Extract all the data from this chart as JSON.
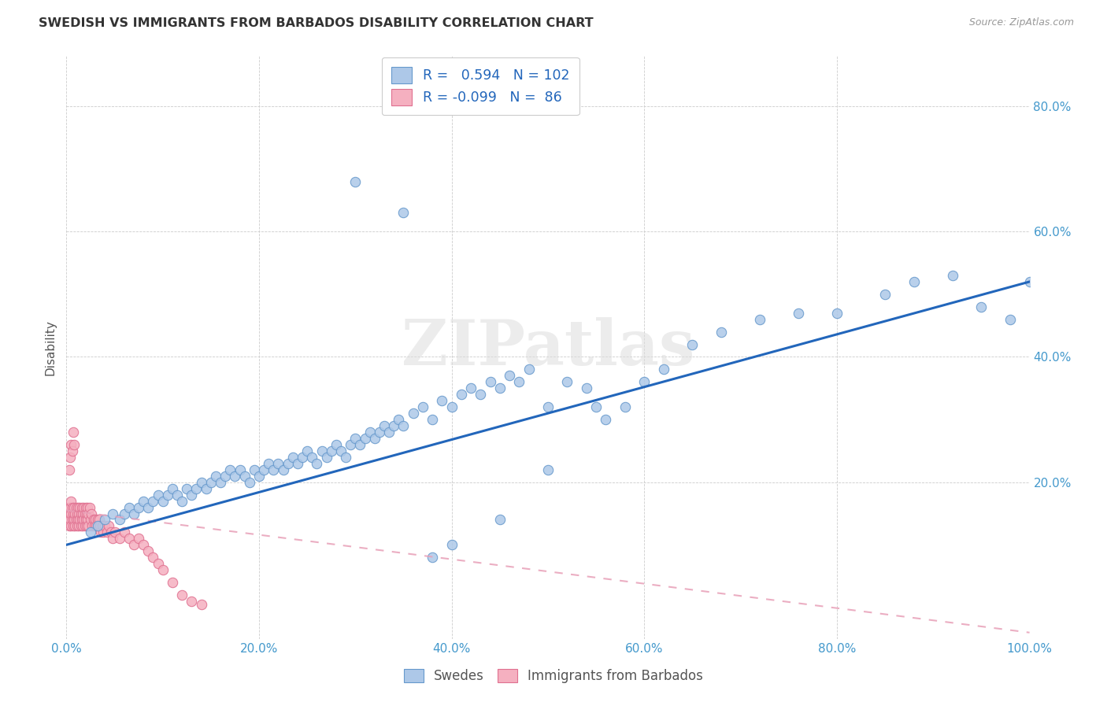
{
  "title": "SWEDISH VS IMMIGRANTS FROM BARBADOS DISABILITY CORRELATION CHART",
  "source": "Source: ZipAtlas.com",
  "ylabel": "Disability",
  "xlim": [
    0.0,
    1.0
  ],
  "ylim": [
    -0.05,
    0.88
  ],
  "x_tick_labels": [
    "0.0%",
    "20.0%",
    "40.0%",
    "60.0%",
    "80.0%",
    "100.0%"
  ],
  "x_tick_vals": [
    0.0,
    0.2,
    0.4,
    0.6,
    0.8,
    1.0
  ],
  "y_tick_labels": [
    "20.0%",
    "40.0%",
    "60.0%",
    "80.0%"
  ],
  "y_tick_vals": [
    0.2,
    0.4,
    0.6,
    0.8
  ],
  "swedes_color": "#adc8e8",
  "swedes_edge_color": "#6699cc",
  "barbados_color": "#f5b0c0",
  "barbados_edge_color": "#e07090",
  "line_blue_color": "#2266bb",
  "line_pink_color": "#e8a0b8",
  "R_swedes": 0.594,
  "N_swedes": 102,
  "R_barbados": -0.099,
  "N_barbados": 86,
  "legend_label_swedes": "Swedes",
  "legend_label_barbados": "Immigrants from Barbados",
  "watermark": "ZIPatlas",
  "swedes_x": [
    0.025,
    0.032,
    0.04,
    0.048,
    0.055,
    0.06,
    0.065,
    0.07,
    0.075,
    0.08,
    0.085,
    0.09,
    0.095,
    0.1,
    0.105,
    0.11,
    0.115,
    0.12,
    0.125,
    0.13,
    0.135,
    0.14,
    0.145,
    0.15,
    0.155,
    0.16,
    0.165,
    0.17,
    0.175,
    0.18,
    0.185,
    0.19,
    0.195,
    0.2,
    0.205,
    0.21,
    0.215,
    0.22,
    0.225,
    0.23,
    0.235,
    0.24,
    0.245,
    0.25,
    0.255,
    0.26,
    0.265,
    0.27,
    0.275,
    0.28,
    0.285,
    0.29,
    0.295,
    0.3,
    0.305,
    0.31,
    0.315,
    0.32,
    0.325,
    0.33,
    0.335,
    0.34,
    0.345,
    0.35,
    0.36,
    0.37,
    0.38,
    0.39,
    0.4,
    0.41,
    0.42,
    0.43,
    0.44,
    0.45,
    0.46,
    0.47,
    0.48,
    0.5,
    0.52,
    0.54,
    0.56,
    0.58,
    0.6,
    0.62,
    0.65,
    0.68,
    0.72,
    0.76,
    0.8,
    0.85,
    0.88,
    0.92,
    0.95,
    0.98,
    1.0,
    0.55,
    0.5,
    0.45,
    0.4,
    0.38,
    0.35,
    0.3
  ],
  "swedes_y": [
    0.12,
    0.13,
    0.14,
    0.15,
    0.14,
    0.15,
    0.16,
    0.15,
    0.16,
    0.17,
    0.16,
    0.17,
    0.18,
    0.17,
    0.18,
    0.19,
    0.18,
    0.17,
    0.19,
    0.18,
    0.19,
    0.2,
    0.19,
    0.2,
    0.21,
    0.2,
    0.21,
    0.22,
    0.21,
    0.22,
    0.21,
    0.2,
    0.22,
    0.21,
    0.22,
    0.23,
    0.22,
    0.23,
    0.22,
    0.23,
    0.24,
    0.23,
    0.24,
    0.25,
    0.24,
    0.23,
    0.25,
    0.24,
    0.25,
    0.26,
    0.25,
    0.24,
    0.26,
    0.27,
    0.26,
    0.27,
    0.28,
    0.27,
    0.28,
    0.29,
    0.28,
    0.29,
    0.3,
    0.29,
    0.31,
    0.32,
    0.3,
    0.33,
    0.32,
    0.34,
    0.35,
    0.34,
    0.36,
    0.35,
    0.37,
    0.36,
    0.38,
    0.32,
    0.36,
    0.35,
    0.3,
    0.32,
    0.36,
    0.38,
    0.42,
    0.44,
    0.46,
    0.47,
    0.47,
    0.5,
    0.52,
    0.53,
    0.48,
    0.46,
    0.52,
    0.32,
    0.22,
    0.14,
    0.1,
    0.08,
    0.63,
    0.68
  ],
  "barbados_x": [
    0.001,
    0.002,
    0.003,
    0.003,
    0.004,
    0.004,
    0.005,
    0.005,
    0.005,
    0.006,
    0.006,
    0.007,
    0.007,
    0.008,
    0.008,
    0.009,
    0.009,
    0.01,
    0.01,
    0.011,
    0.011,
    0.012,
    0.012,
    0.013,
    0.013,
    0.014,
    0.014,
    0.015,
    0.015,
    0.016,
    0.016,
    0.017,
    0.017,
    0.018,
    0.018,
    0.019,
    0.019,
    0.02,
    0.02,
    0.021,
    0.021,
    0.022,
    0.022,
    0.023,
    0.023,
    0.024,
    0.025,
    0.026,
    0.027,
    0.028,
    0.029,
    0.03,
    0.031,
    0.032,
    0.033,
    0.034,
    0.035,
    0.036,
    0.037,
    0.038,
    0.04,
    0.042,
    0.044,
    0.046,
    0.048,
    0.05,
    0.055,
    0.06,
    0.065,
    0.07,
    0.075,
    0.08,
    0.085,
    0.09,
    0.095,
    0.1,
    0.11,
    0.12,
    0.13,
    0.14,
    0.003,
    0.004,
    0.005,
    0.006,
    0.007,
    0.008
  ],
  "barbados_y": [
    0.14,
    0.15,
    0.13,
    0.16,
    0.14,
    0.16,
    0.15,
    0.13,
    0.17,
    0.14,
    0.16,
    0.15,
    0.13,
    0.16,
    0.14,
    0.15,
    0.13,
    0.16,
    0.14,
    0.15,
    0.13,
    0.16,
    0.14,
    0.15,
    0.13,
    0.16,
    0.14,
    0.15,
    0.13,
    0.14,
    0.16,
    0.15,
    0.13,
    0.16,
    0.14,
    0.15,
    0.13,
    0.16,
    0.14,
    0.15,
    0.13,
    0.16,
    0.14,
    0.15,
    0.13,
    0.16,
    0.14,
    0.15,
    0.13,
    0.14,
    0.13,
    0.14,
    0.13,
    0.14,
    0.13,
    0.14,
    0.13,
    0.12,
    0.13,
    0.12,
    0.13,
    0.12,
    0.13,
    0.12,
    0.11,
    0.12,
    0.11,
    0.12,
    0.11,
    0.1,
    0.11,
    0.1,
    0.09,
    0.08,
    0.07,
    0.06,
    0.04,
    0.02,
    0.01,
    0.005,
    0.22,
    0.24,
    0.26,
    0.25,
    0.28,
    0.26
  ]
}
